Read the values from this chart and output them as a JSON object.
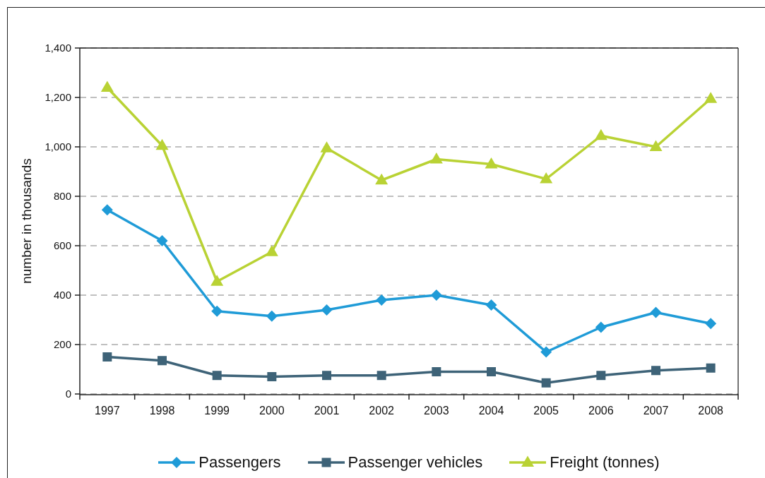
{
  "chart_data": {
    "type": "line",
    "categories": [
      "1997",
      "1998",
      "1999",
      "2000",
      "2001",
      "2002",
      "2003",
      "2004",
      "2005",
      "2006",
      "2007",
      "2008"
    ],
    "ylabel": "number in thousands",
    "ylim": [
      0,
      1400
    ],
    "yticks": [
      0,
      200,
      400,
      600,
      800,
      {
        "value": 1000,
        "label": "1,000"
      },
      {
        "value": 1200,
        "label": "1,200"
      },
      {
        "value": 1400,
        "label": "1,400"
      }
    ],
    "grid": "y",
    "legend": "bottom",
    "series": [
      {
        "name": "Passengers",
        "color": "#1f9bd7",
        "marker": "diamond",
        "values": [
          745,
          620,
          335,
          315,
          340,
          380,
          400,
          360,
          170,
          270,
          330,
          285
        ]
      },
      {
        "name": "Passenger vehicles",
        "color": "#3e6378",
        "marker": "square",
        "values": [
          150,
          135,
          75,
          70,
          75,
          75,
          90,
          90,
          45,
          75,
          95,
          105
        ]
      },
      {
        "name": "Freight (tonnes)",
        "color": "#b9d234",
        "marker": "triangle",
        "values": [
          1240,
          1005,
          455,
          575,
          995,
          865,
          950,
          930,
          870,
          1045,
          1000,
          1195
        ]
      }
    ]
  }
}
